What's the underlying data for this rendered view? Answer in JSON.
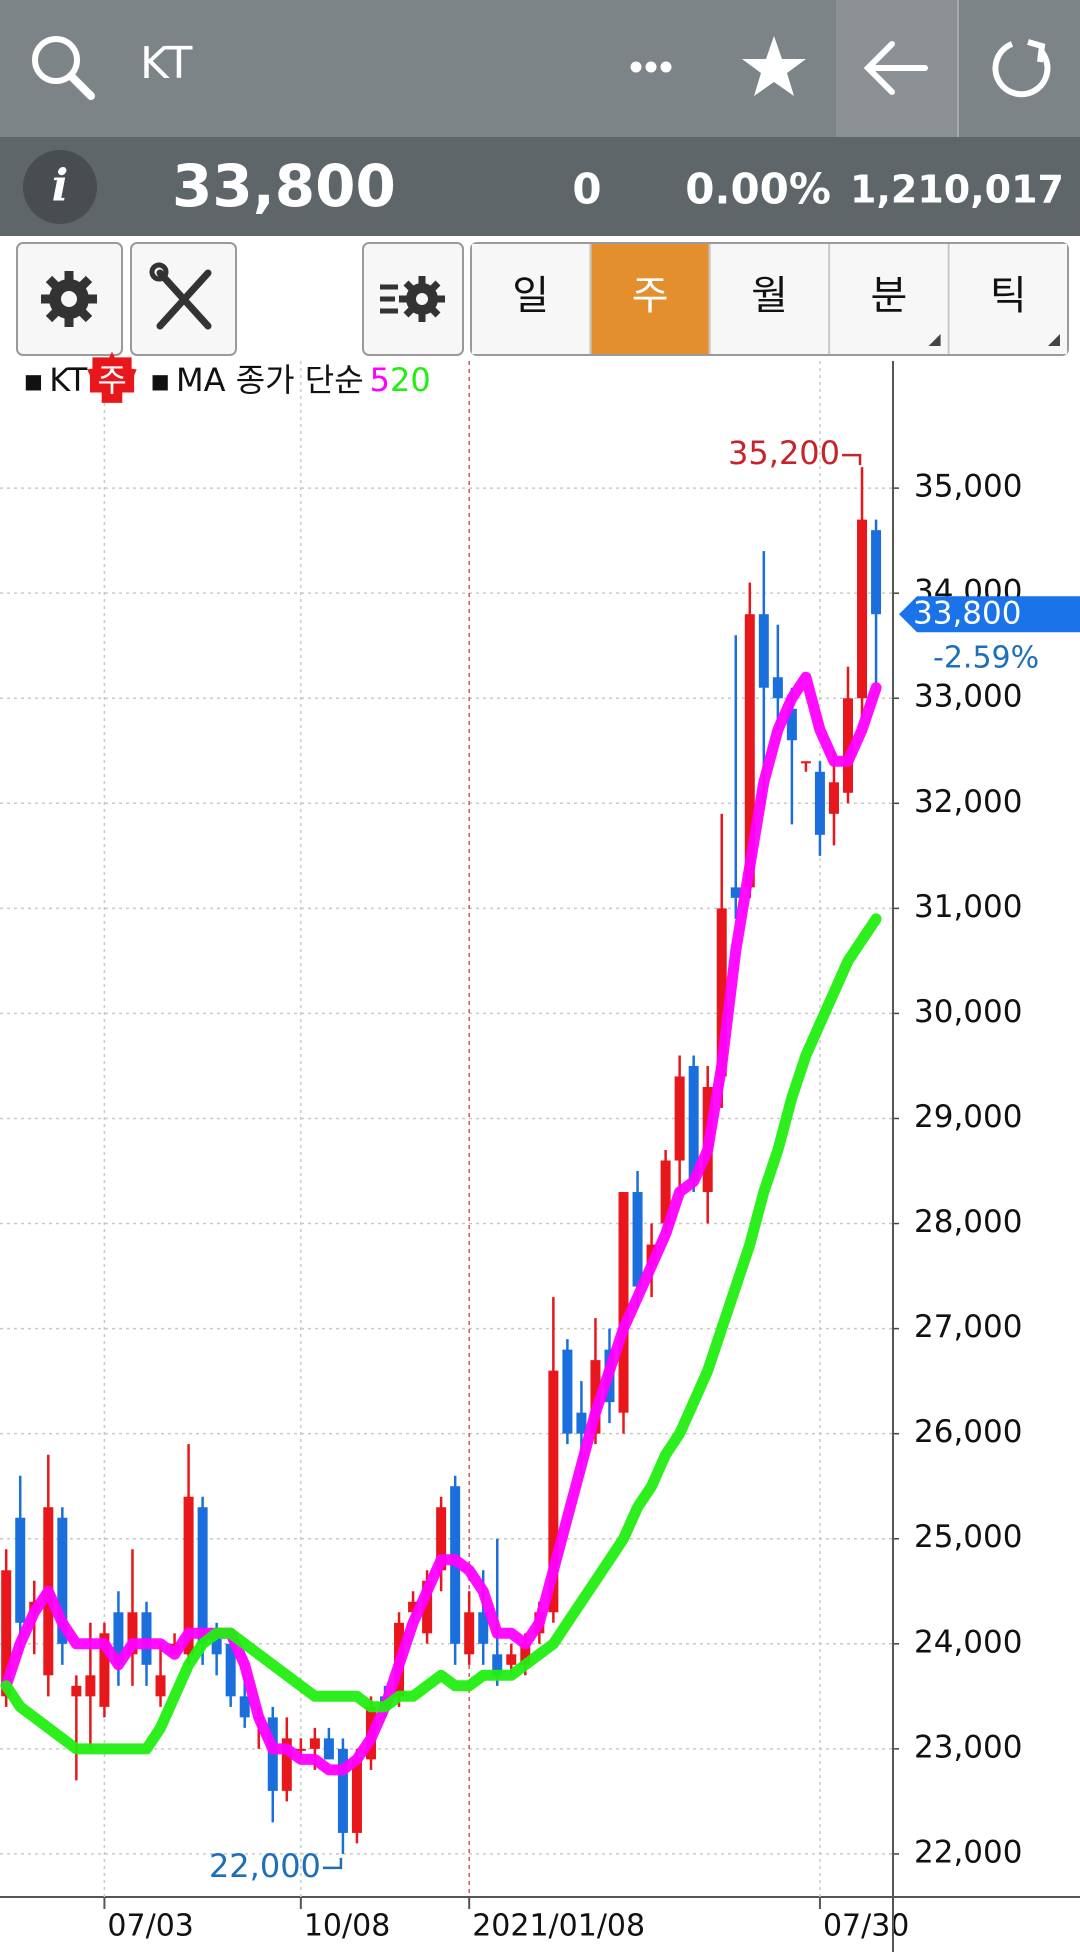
{
  "header": {
    "symbol": "KT"
  },
  "quote": {
    "price": "33,800",
    "change": "0",
    "change_percent": "0.00%",
    "volume": "1,210,017"
  },
  "periods": [
    "일",
    "주",
    "월",
    "분",
    "틱"
  ],
  "active_period": 1,
  "chart_data": {
    "type": "candlestick",
    "legend": {
      "symbol": "KT",
      "period": "주",
      "ma_label": "MA 종가 단순"
    },
    "up_color": "#e8171b",
    "down_color": "#1a6fdc",
    "categories": [
      null,
      null,
      null,
      null,
      null,
      null,
      null,
      "07/03",
      null,
      null,
      null,
      null,
      null,
      null,
      null,
      null,
      null,
      null,
      null,
      null,
      null,
      "10/08",
      null,
      null,
      null,
      null,
      null,
      null,
      null,
      null,
      null,
      null,
      null,
      "2021/01/08",
      null,
      null,
      null,
      null,
      null,
      null,
      null,
      null,
      null,
      null,
      null,
      null,
      null,
      null,
      null,
      null,
      null,
      null,
      null,
      null,
      null,
      null,
      null,
      null,
      "07/30",
      null,
      null,
      null,
      null
    ],
    "open": [
      23500,
      25200,
      24300,
      23700,
      25200,
      23500,
      23500,
      23400,
      24300,
      23900,
      24300,
      23500,
      23900,
      23900,
      25300,
      24100,
      24000,
      23500,
      23300,
      23300,
      22600,
      23000,
      23000,
      23100,
      23000,
      22200,
      22900,
      23500,
      23500,
      24300,
      24100,
      24700,
      25500,
      23900,
      24300,
      23900,
      23800,
      23800,
      24100,
      24300,
      26800,
      26200,
      26000,
      26800,
      26200,
      28300,
      27600,
      28000,
      28600,
      29500,
      28300,
      29400,
      31200,
      31200,
      33800,
      33200,
      32900,
      32400,
      32300,
      31900,
      32100,
      33000,
      34600
    ],
    "high": [
      24900,
      25600,
      24600,
      25800,
      25300,
      23700,
      24200,
      24200,
      24500,
      24900,
      24400,
      24000,
      24100,
      25900,
      25400,
      24200,
      24100,
      23700,
      23400,
      23400,
      23300,
      23100,
      23200,
      23200,
      23100,
      23000,
      23500,
      23600,
      24300,
      24500,
      24700,
      25400,
      25600,
      24500,
      24700,
      25000,
      24000,
      24100,
      24400,
      27300,
      26900,
      26500,
      27100,
      27000,
      28300,
      28500,
      28000,
      28700,
      29600,
      29600,
      29500,
      31900,
      33600,
      34100,
      34400,
      33700,
      33100,
      32400,
      32400,
      32500,
      33300,
      35200,
      34700
    ],
    "low": [
      23400,
      23900,
      23900,
      23500,
      23800,
      22700,
      23000,
      23300,
      23600,
      23600,
      23600,
      23400,
      23900,
      23800,
      23800,
      23700,
      23400,
      23200,
      23000,
      22300,
      22500,
      22900,
      22800,
      22900,
      22000,
      22100,
      22800,
      23300,
      23400,
      24200,
      24000,
      24500,
      23800,
      23800,
      23800,
      23600,
      23700,
      23700,
      24000,
      24200,
      25900,
      25600,
      25900,
      26100,
      26000,
      27200,
      27300,
      27900,
      28300,
      28300,
      28000,
      29100,
      30900,
      31100,
      32000,
      32700,
      31800,
      32300,
      31500,
      31600,
      32000,
      32800,
      33100
    ],
    "close": [
      24700,
      24200,
      24400,
      25300,
      24000,
      23600,
      23700,
      24100,
      23800,
      24300,
      23800,
      23700,
      24000,
      25400,
      24000,
      23900,
      23500,
      23300,
      23300,
      22600,
      23100,
      23000,
      23100,
      22900,
      22200,
      22900,
      23400,
      23400,
      24200,
      24400,
      24600,
      25300,
      24000,
      24300,
      24000,
      23700,
      23900,
      24000,
      24300,
      26600,
      26000,
      26000,
      26700,
      26300,
      28300,
      27400,
      27800,
      28600,
      29400,
      28400,
      29300,
      31000,
      31100,
      33800,
      33100,
      33000,
      32600,
      32400,
      31700,
      32200,
      33000,
      34700,
      33800
    ],
    "series": [
      {
        "name": "5",
        "color": "#ff00ff",
        "values": [
          23600,
          24000,
          24300,
          24500,
          24200,
          24000,
          24000,
          24000,
          23800,
          24000,
          24000,
          24000,
          23900,
          24100,
          24100,
          24100,
          24100,
          23800,
          23300,
          23000,
          23000,
          22900,
          22900,
          22800,
          22800,
          22900,
          23100,
          23400,
          23800,
          24200,
          24500,
          24800,
          24800,
          24700,
          24500,
          24100,
          24100,
          24000,
          24200,
          24700,
          25200,
          25700,
          26200,
          26600,
          27000,
          27300,
          27600,
          27900,
          28300,
          28400,
          28700,
          29500,
          30600,
          31400,
          32200,
          32700,
          33000,
          33200,
          32700,
          32400,
          32400,
          32700,
          33100
        ]
      },
      {
        "name": "20",
        "color": "#22ee11",
        "values": [
          23600,
          23400,
          23300,
          23200,
          23100,
          23000,
          23000,
          23000,
          23000,
          23000,
          23000,
          23200,
          23500,
          23800,
          24000,
          24100,
          24100,
          24000,
          23900,
          23800,
          23700,
          23600,
          23500,
          23500,
          23500,
          23500,
          23400,
          23400,
          23500,
          23500,
          23600,
          23700,
          23600,
          23600,
          23700,
          23700,
          23700,
          23800,
          23900,
          24000,
          24200,
          24400,
          24600,
          24800,
          25000,
          25300,
          25500,
          25800,
          26000,
          26300,
          26600,
          27000,
          27400,
          27800,
          28300,
          28700,
          29200,
          29600,
          29900,
          30200,
          30500,
          30700,
          30900
        ]
      }
    ],
    "ylim": [
      21590,
      36210
    ],
    "yticks": [
      {
        "value": 22000,
        "label": "22,000"
      },
      {
        "value": 23000,
        "label": "23,000"
      },
      {
        "value": 24000,
        "label": "24,000"
      },
      {
        "value": 25000,
        "label": "25,000"
      },
      {
        "value": 26000,
        "label": "26,000"
      },
      {
        "value": 27000,
        "label": "27,000"
      },
      {
        "value": 28000,
        "label": "28,000"
      },
      {
        "value": 29000,
        "label": "29,000"
      },
      {
        "value": 30000,
        "label": "30,000"
      },
      {
        "value": 31000,
        "label": "31,000"
      },
      {
        "value": 32000,
        "label": "32,000"
      },
      {
        "value": 33000,
        "label": "33,000"
      },
      {
        "value": 34000,
        "label": "34,000"
      },
      {
        "value": 35000,
        "label": "35,000"
      }
    ],
    "grid": true,
    "annotations": [
      {
        "value": 35200,
        "label": "35,200",
        "color": "#c8232a"
      },
      {
        "value": 22000,
        "label": "22,000",
        "color": "#1f6fb8"
      }
    ],
    "last_price": {
      "value": 33800,
      "label": "33,800",
      "color": "#1a73e8"
    },
    "change_label": "-2.59%"
  }
}
